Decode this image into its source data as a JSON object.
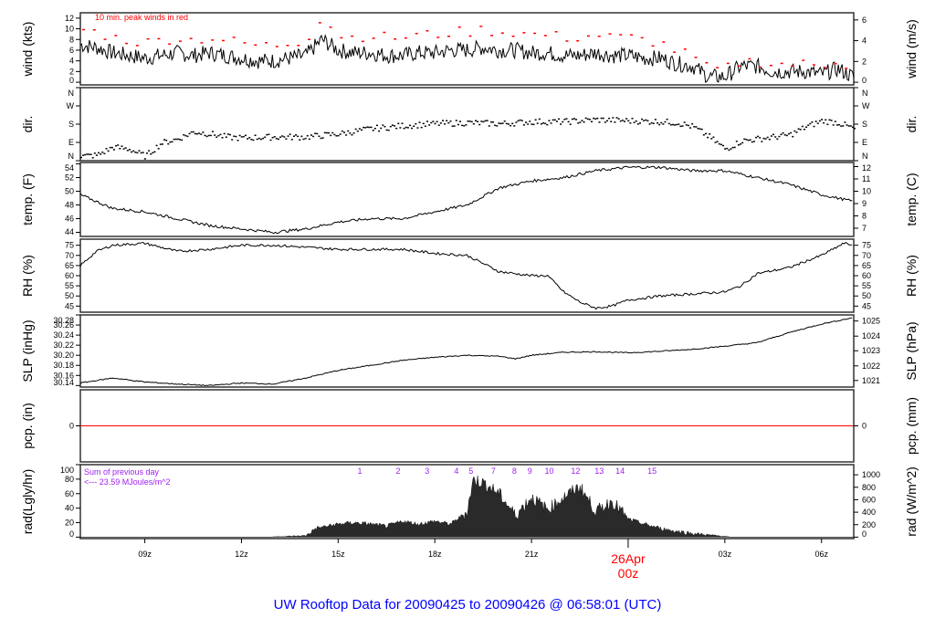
{
  "chart_data": {
    "type": "line",
    "title": "UW Rooftop Data for 20090425  to  20090426 @ 06:58:01  (UTC)",
    "x_units": "hours UTC from 25Apr 00z",
    "xlim": [
      7,
      31
    ],
    "x_ticks": [
      {
        "x": 9,
        "label": "09z"
      },
      {
        "x": 12,
        "label": "12z"
      },
      {
        "x": 15,
        "label": "15z"
      },
      {
        "x": 18,
        "label": "18z"
      },
      {
        "x": 21,
        "label": "21z"
      },
      {
        "x": 24,
        "label": "00z",
        "date": "26Apr"
      },
      {
        "x": 27,
        "label": "03z"
      },
      {
        "x": 30,
        "label": "06z"
      }
    ],
    "panels": [
      {
        "id": "wind",
        "ylabel": "wind (kts)",
        "ylabel_right": "wind (m/s)",
        "ylim": [
          -0.5,
          13
        ],
        "left_ticks": [
          {
            "v": 0,
            "l": "0"
          },
          {
            "v": 2,
            "l": "2"
          },
          {
            "v": 4,
            "l": "4"
          },
          {
            "v": 6,
            "l": "6"
          },
          {
            "v": 8,
            "l": "8"
          },
          {
            "v": 10,
            "l": "10"
          },
          {
            "v": 12,
            "l": "12"
          }
        ],
        "right_ticks": [
          {
            "v": 0,
            "l": "0"
          },
          {
            "v": 3.888,
            "l": "2"
          },
          {
            "v": 7.776,
            "l": "4"
          },
          {
            "v": 11.664,
            "l": "6"
          }
        ],
        "annotation": "10 min. peak winds in red",
        "x": [
          7,
          7.5,
          8,
          8.5,
          9,
          9.5,
          10,
          10.5,
          11,
          11.5,
          12,
          12.5,
          13,
          13.5,
          14,
          14.5,
          15,
          15.5,
          16,
          16.5,
          17,
          17.5,
          18,
          18.5,
          19,
          19.5,
          20,
          20.5,
          21,
          21.5,
          22,
          22.5,
          23,
          23.5,
          24,
          24.5,
          25,
          25.5,
          26,
          26.5,
          27,
          27.5,
          28,
          28.5,
          29,
          29.5,
          30,
          30.5,
          31
        ],
        "values": [
          7,
          6.5,
          5.5,
          5,
          4.5,
          5,
          5.5,
          5,
          5.5,
          5,
          4.5,
          4,
          4,
          4.5,
          5,
          8,
          6,
          5.5,
          5.5,
          5,
          5,
          5.5,
          5.5,
          6,
          6,
          6.5,
          6,
          6,
          5.5,
          5.5,
          5,
          5,
          5.5,
          5,
          5,
          4.5,
          4.5,
          3.5,
          3,
          1,
          1,
          3,
          3,
          2,
          2,
          2,
          1.5,
          2.5,
          1
        ],
        "peaks": [
          10,
          9.5,
          8.5,
          8,
          7.5,
          8,
          8.5,
          8,
          8.5,
          8,
          7.5,
          7,
          7,
          7.5,
          8,
          12.5,
          9,
          8.5,
          9,
          8.5,
          8.5,
          9,
          9,
          9.5,
          9.5,
          10,
          9.5,
          9.5,
          9,
          9,
          8.5,
          8.5,
          9,
          8.5,
          8.5,
          8,
          7.5,
          6,
          5,
          2.5,
          2.5,
          4,
          4,
          3.5,
          3.5,
          3.5,
          3,
          4.5,
          2.5
        ]
      },
      {
        "id": "dir",
        "ylabel": "dir.",
        "ylabel_right": "dir.",
        "ylim": [
          0,
          360
        ],
        "left_ticks": [
          {
            "v": 0,
            "l": "N"
          },
          {
            "v": 90,
            "l": "E"
          },
          {
            "v": 180,
            "l": "S"
          },
          {
            "v": 270,
            "l": "W"
          },
          {
            "v": 360,
            "l": "N"
          }
        ],
        "right_ticks": [
          {
            "v": 0,
            "l": "N"
          },
          {
            "v": 90,
            "l": "E"
          },
          {
            "v": 180,
            "l": "S"
          },
          {
            "v": 270,
            "l": "W"
          },
          {
            "v": 360,
            "l": "N"
          }
        ],
        "x": [
          7,
          7.5,
          8,
          8.5,
          9,
          9.5,
          10,
          10.5,
          11,
          11.5,
          12,
          13,
          14,
          15,
          16,
          17,
          18,
          19,
          20,
          21,
          22,
          23,
          24,
          25,
          25.5,
          26,
          26.5,
          27,
          27.5,
          28,
          29,
          29.5,
          30,
          30.5,
          31
        ],
        "values": [
          25,
          30,
          70,
          60,
          25,
          90,
          110,
          145,
          135,
          120,
          115,
          120,
          120,
          135,
          160,
          175,
          185,
          190,
          185,
          195,
          195,
          205,
          200,
          195,
          190,
          170,
          120,
          60,
          100,
          110,
          130,
          170,
          200,
          190,
          160
        ]
      },
      {
        "id": "temp",
        "ylabel": "temp. (F)",
        "ylabel_right": "temp. (C)",
        "ylim": [
          43.4,
          54.2
        ],
        "left_ticks": [
          {
            "v": 44,
            "l": "44"
          },
          {
            "v": 46,
            "l": "46"
          },
          {
            "v": 48,
            "l": "48"
          },
          {
            "v": 50,
            "l": "50"
          },
          {
            "v": 52,
            "l": "52"
          },
          {
            "v": 54,
            "l": "54"
          }
        ],
        "right_ticks": [
          {
            "v": 44.6,
            "l": "7"
          },
          {
            "v": 46.4,
            "l": "8"
          },
          {
            "v": 48.2,
            "l": "9"
          },
          {
            "v": 50,
            "l": "10"
          },
          {
            "v": 51.8,
            "l": "11"
          },
          {
            "v": 53.6,
            "l": "12"
          }
        ],
        "x": [
          7,
          8,
          9,
          10,
          11,
          12,
          13,
          14,
          15,
          16,
          17,
          18,
          19,
          20,
          21,
          22,
          23,
          24,
          25,
          26,
          27,
          28,
          29,
          30,
          31
        ],
        "values": [
          49.5,
          47.5,
          47,
          46,
          45,
          44.5,
          44,
          44.5,
          45.5,
          46,
          46,
          47,
          48,
          50.5,
          51.5,
          52,
          53,
          53.5,
          53.5,
          53,
          53,
          52,
          51,
          49.5,
          48.5
        ]
      },
      {
        "id": "rh",
        "ylabel": "RH (%)",
        "ylabel_right": "RH (%)",
        "ylim": [
          42,
          78
        ],
        "left_ticks": [
          {
            "v": 45,
            "l": "45"
          },
          {
            "v": 50,
            "l": "50"
          },
          {
            "v": 55,
            "l": "55"
          },
          {
            "v": 60,
            "l": "60"
          },
          {
            "v": 65,
            "l": "65"
          },
          {
            "v": 70,
            "l": "70"
          },
          {
            "v": 75,
            "l": "75"
          }
        ],
        "right_ticks": [
          {
            "v": 45,
            "l": "45"
          },
          {
            "v": 50,
            "l": "50"
          },
          {
            "v": 55,
            "l": "55"
          },
          {
            "v": 60,
            "l": "60"
          },
          {
            "v": 65,
            "l": "65"
          },
          {
            "v": 70,
            "l": "70"
          },
          {
            "v": 75,
            "l": "75"
          }
        ],
        "x": [
          7,
          7.5,
          8,
          9,
          10,
          11,
          12,
          13,
          14,
          15,
          16,
          17,
          18,
          19,
          20,
          21,
          21.5,
          22,
          22.5,
          23,
          23.5,
          24,
          25,
          26,
          27,
          27.5,
          28,
          29,
          30,
          30.7,
          31
        ],
        "values": [
          65,
          72,
          75,
          76,
          72,
          73,
          75,
          75,
          74,
          73,
          73,
          73,
          71,
          70,
          62,
          60,
          60,
          52,
          47,
          44,
          45,
          48,
          50,
          51,
          52,
          55,
          61,
          64,
          70,
          76,
          75
        ]
      },
      {
        "id": "slp",
        "ylabel": "SLP (inHg)",
        "ylabel_right": "SLP (hPa)",
        "ylim": [
          30.137,
          30.28
        ],
        "left_ticks": [
          {
            "v": 30.14,
            "l": "30.14"
          },
          {
            "v": 30.16,
            "l": "30.16"
          },
          {
            "v": 30.18,
            "l": "30.18"
          },
          {
            "v": 30.2,
            "l": "30.20"
          },
          {
            "v": 30.22,
            "l": "30.22"
          },
          {
            "v": 30.24,
            "l": "30.24"
          },
          {
            "v": 30.26,
            "l": "30.26"
          },
          {
            "v": 30.28,
            "l": "30.28"
          }
        ],
        "right_ticks": [
          {
            "v": 30.15,
            "l": "1021"
          },
          {
            "v": 30.179,
            "l": "1022"
          },
          {
            "v": 30.209,
            "l": "1023"
          },
          {
            "v": 30.238,
            "l": "1024"
          },
          {
            "v": 30.268,
            "l": "1025"
          }
        ],
        "x": [
          7,
          8,
          9,
          10,
          11,
          12,
          13,
          14,
          15,
          16,
          17,
          18,
          19,
          20,
          20.5,
          21,
          22,
          23,
          24,
          25,
          26,
          27,
          28,
          29,
          30,
          31
        ],
        "values": [
          30.145,
          30.155,
          30.147,
          30.143,
          30.14,
          30.145,
          30.143,
          30.155,
          30.17,
          30.18,
          30.19,
          30.196,
          30.2,
          30.198,
          30.193,
          30.2,
          30.206,
          30.207,
          30.205,
          30.208,
          30.212,
          30.218,
          30.225,
          30.245,
          30.262,
          30.275
        ]
      },
      {
        "id": "pcp",
        "ylabel": "pcp. (in)",
        "ylabel_right": "pcp. (mm)",
        "ylim": [
          -1,
          1
        ],
        "left_ticks": [
          {
            "v": 0,
            "l": "0"
          }
        ],
        "right_ticks": [
          {
            "v": 0,
            "l": "0"
          }
        ],
        "x": [
          7,
          31
        ],
        "values": [
          0,
          0
        ]
      },
      {
        "id": "rad",
        "ylabel": "rad(Lgly/hr)",
        "ylabel_right": "rad (W/m^2)",
        "ylim": [
          -2,
          100
        ],
        "left_ticks": [
          {
            "v": 0,
            "l": "0"
          },
          {
            "v": 20,
            "l": "20"
          },
          {
            "v": 40,
            "l": "40"
          },
          {
            "v": 60,
            "l": "60"
          },
          {
            "v": 80,
            "l": "80"
          },
          {
            "v": 100,
            "l": "100"
          }
        ],
        "right_ticks": [
          {
            "v": 0,
            "l": "0"
          },
          {
            "v": 17.2,
            "l": "200"
          },
          {
            "v": 34.4,
            "l": "400"
          },
          {
            "v": 51.6,
            "l": "600"
          },
          {
            "v": 68.8,
            "l": "800"
          },
          {
            "v": 86,
            "l": "1000"
          }
        ],
        "annotation_line1": "Sum of previous day",
        "annotation_line2": "<--- 23.59 MJoules/m^2",
        "markers": [
          {
            "x": 15.67,
            "l": "1"
          },
          {
            "x": 16.86,
            "l": "2"
          },
          {
            "x": 17.76,
            "l": "3"
          },
          {
            "x": 18.67,
            "l": "4"
          },
          {
            "x": 19.12,
            "l": "5"
          },
          {
            "x": 19.82,
            "l": "7"
          },
          {
            "x": 20.47,
            "l": "8"
          },
          {
            "x": 20.95,
            "l": "9"
          },
          {
            "x": 21.55,
            "l": "10"
          },
          {
            "x": 22.37,
            "l": "12"
          },
          {
            "x": 23.1,
            "l": "13"
          },
          {
            "x": 23.75,
            "l": "14"
          },
          {
            "x": 24.74,
            "l": "15"
          }
        ],
        "x": [
          7,
          12.9,
          13,
          14,
          14.3,
          15,
          15.5,
          16,
          16.5,
          17,
          17.5,
          18,
          18.5,
          19,
          19.2,
          19.5,
          20,
          20.5,
          21,
          21.5,
          22,
          22.5,
          23,
          23.5,
          24,
          24.5,
          25,
          25.5,
          26,
          26.5,
          27,
          27.2,
          31
        ],
        "values": [
          0,
          0,
          0.5,
          2,
          12,
          18,
          20,
          18,
          15,
          22,
          18,
          22,
          18,
          35,
          80,
          75,
          60,
          30,
          55,
          38,
          55,
          70,
          35,
          50,
          25,
          18,
          12,
          8,
          5,
          3,
          1,
          0,
          0
        ]
      }
    ]
  }
}
